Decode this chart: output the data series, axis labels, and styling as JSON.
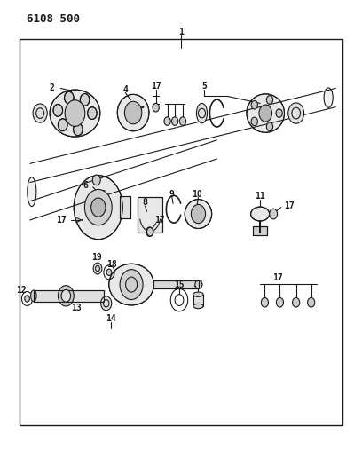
{
  "title": "6108 500",
  "bg_color": "#ffffff",
  "line_color": "#1a1a1a",
  "text_color": "#1a1a1a",
  "fig_width": 4.08,
  "fig_height": 5.33,
  "dpi": 100
}
